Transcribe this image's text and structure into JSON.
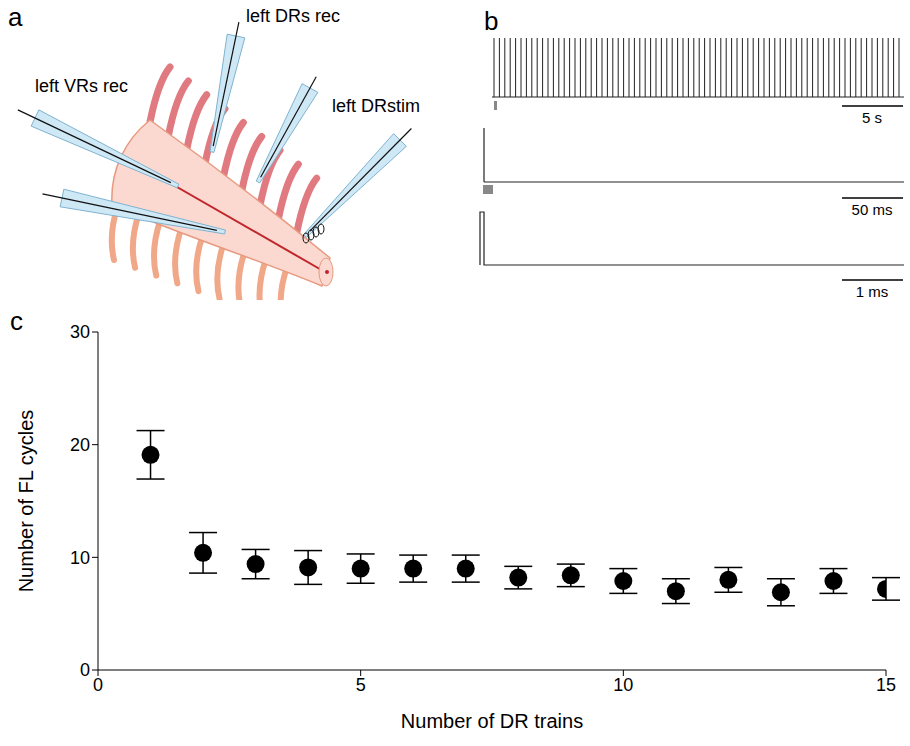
{
  "panel_a": {
    "letter": "a",
    "labels": {
      "dr_rec": "left DRs rec",
      "vr_rec": "left VRs rec",
      "dr_stim": "left DRstim"
    }
  },
  "panel_b": {
    "letter": "b",
    "scale_bars": [
      "5 s",
      "50 ms",
      "1 ms"
    ]
  },
  "chart_data": {
    "letter": "c",
    "type": "scatter",
    "x": [
      1,
      2,
      3,
      4,
      5,
      6,
      7,
      8,
      9,
      10,
      11,
      12,
      13,
      14,
      15
    ],
    "values": [
      19.1,
      10.4,
      9.4,
      9.1,
      9.0,
      9.0,
      9.0,
      8.2,
      8.4,
      7.9,
      7.0,
      8.0,
      6.9,
      7.9,
      7.2
    ],
    "errors": [
      2.15,
      1.8,
      1.3,
      1.5,
      1.3,
      1.2,
      1.2,
      1.0,
      1.0,
      1.1,
      1.1,
      1.1,
      1.2,
      1.1,
      1.0
    ],
    "xlabel": "Number of DR trains",
    "ylabel": "Number of FL cycles",
    "xlim": [
      0,
      15
    ],
    "ylim": [
      0,
      30
    ],
    "xticks": [
      0,
      5,
      10,
      15
    ],
    "yticks": [
      0,
      10,
      20,
      30
    ],
    "color": "#000000",
    "marker": "circle"
  }
}
